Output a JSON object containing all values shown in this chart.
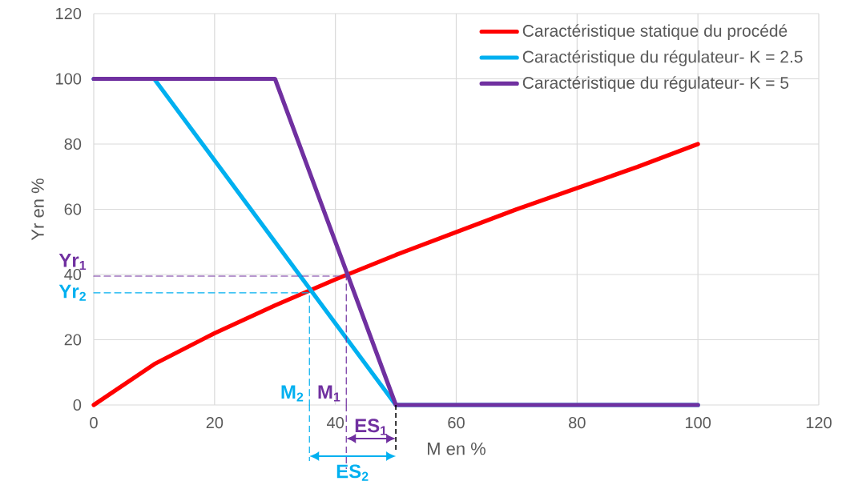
{
  "chart_data": {
    "type": "line",
    "xlabel": "M en %",
    "ylabel": "Yr en %",
    "xlim": [
      0,
      120
    ],
    "xticks": [
      0,
      20,
      40,
      60,
      80,
      100,
      120
    ],
    "ylim": [
      0,
      120
    ],
    "yticks": [
      0,
      20,
      40,
      60,
      80,
      100,
      120
    ],
    "grid": true,
    "legend": "top right",
    "marker": "none",
    "series": [
      {
        "name": "Caractéristique statique du procédé",
        "color": "#ff0000",
        "x": [
          0,
          10,
          20,
          30,
          40,
          50,
          60,
          70,
          80,
          90,
          100
        ],
        "values": [
          0,
          12.5,
          22,
          30.5,
          38.5,
          46,
          53,
          60,
          66.5,
          73,
          80
        ]
      },
      {
        "name": "Caractéristique du régulateur- K = 2.5",
        "color": "#00b0f0",
        "x": [
          0,
          10,
          50,
          100
        ],
        "values": [
          100,
          100,
          0,
          0
        ]
      },
      {
        "name": "Caractéristique du régulateur- K = 5",
        "color": "#7030a0",
        "x": [
          0,
          30,
          50,
          100
        ],
        "values": [
          100,
          100,
          0,
          0
        ]
      },
      {
        "color": "#7030a0",
        "line_style": "dashed",
        "x": [
          0,
          41.8,
          41.8
        ],
        "values": [
          39.5,
          39.5,
          0
        ]
      },
      {
        "color": "#00b0f0",
        "line_style": "dashed",
        "x": [
          0,
          35.7,
          35.7
        ],
        "values": [
          34.4,
          34.4,
          0
        ]
      }
    ],
    "annotations": [
      {
        "text": "Yr$_{1}$",
        "x": 0,
        "y": 39.5
      },
      {
        "text": "Yr$_{2}$",
        "x": 0,
        "y": 34.4
      },
      {
        "text": "M$_{2}$",
        "x": 35.7,
        "y": 0
      },
      {
        "text": "M$_{1}$",
        "x": 41.8,
        "y": 0
      },
      "ES$_{1}$",
      "ES$_{2}$"
    ]
  }
}
